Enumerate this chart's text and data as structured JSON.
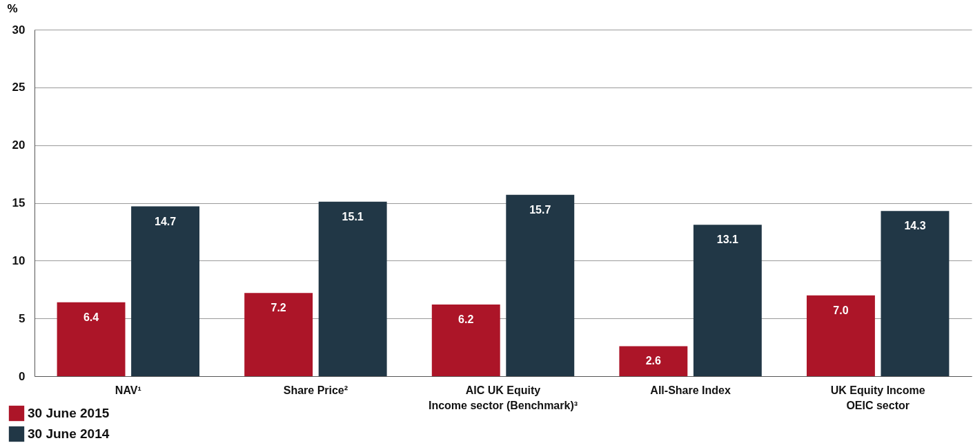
{
  "chart_data": {
    "type": "bar",
    "ylabel": "%",
    "categories": [
      "NAV¹",
      "Share Price²",
      "AIC UK Equity\nIncome sector (Benchmark)³",
      "All-Share Index",
      "UK Equity Income\nOEIC sector"
    ],
    "series": [
      {
        "name": "30 June 2015",
        "color": "#ac1528",
        "values": [
          6.4,
          7.2,
          6.2,
          2.6,
          7.0
        ],
        "value_labels": [
          "6.4",
          "7.2",
          "6.2",
          "2.6",
          "7.0"
        ]
      },
      {
        "name": "30 June 2014",
        "color": "#213746",
        "values": [
          14.7,
          15.1,
          15.7,
          13.1,
          14.3
        ],
        "value_labels": [
          "14.7",
          "15.1",
          "15.7",
          "13.1",
          "14.3"
        ]
      }
    ],
    "ylim": [
      0,
      30
    ],
    "yticks": [
      0,
      5,
      10,
      15,
      20,
      25,
      30
    ],
    "grid": "y",
    "legend": "bottom left"
  }
}
